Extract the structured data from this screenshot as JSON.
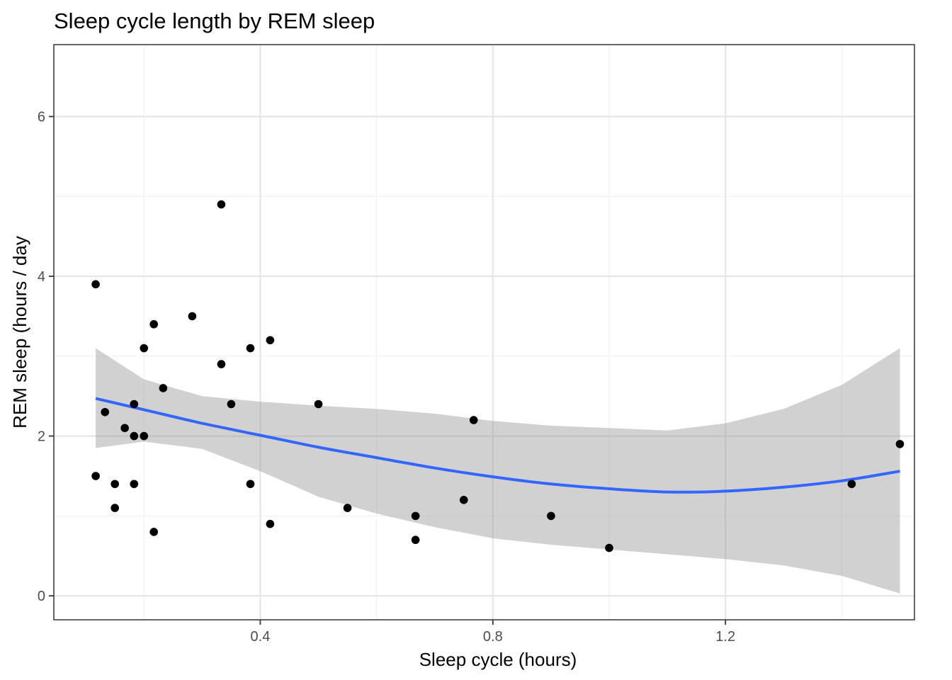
{
  "chart_data": {
    "type": "scatter",
    "title": "Sleep cycle length by REM sleep",
    "xlabel": "Sleep cycle (hours)",
    "ylabel": "REM sleep (hours / day",
    "xlim": [
      0.045,
      1.525
    ],
    "ylim": [
      -0.3,
      6.9
    ],
    "x_ticks": [
      0.4,
      0.8,
      1.2
    ],
    "x_tick_labels": [
      "0.4",
      "0.8",
      "1.2"
    ],
    "x_minor_ticks": [
      0.2,
      0.6,
      1.0,
      1.4
    ],
    "y_ticks": [
      0,
      2,
      4,
      6
    ],
    "y_tick_labels": [
      "0",
      "2",
      "4",
      "6"
    ],
    "y_minor_ticks": [
      1,
      3,
      5
    ],
    "grid": true,
    "legend": "none",
    "colors": {
      "points": "#000000",
      "trend": "#3366ff",
      "band": "#999999"
    },
    "points": [
      {
        "x": 0.117,
        "y": 3.9
      },
      {
        "x": 0.117,
        "y": 1.5
      },
      {
        "x": 0.133,
        "y": 2.3
      },
      {
        "x": 0.15,
        "y": 1.4
      },
      {
        "x": 0.15,
        "y": 1.1
      },
      {
        "x": 0.167,
        "y": 2.1
      },
      {
        "x": 0.183,
        "y": 2.4
      },
      {
        "x": 0.183,
        "y": 2.0
      },
      {
        "x": 0.183,
        "y": 1.4
      },
      {
        "x": 0.2,
        "y": 3.1
      },
      {
        "x": 0.2,
        "y": 2.0
      },
      {
        "x": 0.217,
        "y": 3.4
      },
      {
        "x": 0.217,
        "y": 0.8
      },
      {
        "x": 0.233,
        "y": 2.6
      },
      {
        "x": 0.283,
        "y": 3.5
      },
      {
        "x": 0.333,
        "y": 4.9
      },
      {
        "x": 0.333,
        "y": 2.9
      },
      {
        "x": 0.35,
        "y": 2.4
      },
      {
        "x": 0.383,
        "y": 3.1
      },
      {
        "x": 0.383,
        "y": 1.4
      },
      {
        "x": 0.417,
        "y": 3.2
      },
      {
        "x": 0.417,
        "y": 0.9
      },
      {
        "x": 0.5,
        "y": 2.4
      },
      {
        "x": 0.55,
        "y": 1.1
      },
      {
        "x": 0.667,
        "y": 1.0
      },
      {
        "x": 0.667,
        "y": 0.7
      },
      {
        "x": 0.75,
        "y": 1.2
      },
      {
        "x": 0.767,
        "y": 2.2
      },
      {
        "x": 0.9,
        "y": 1.0
      },
      {
        "x": 1.0,
        "y": 0.6
      },
      {
        "x": 1.417,
        "y": 1.4
      },
      {
        "x": 1.5,
        "y": 1.9
      }
    ],
    "smooth": {
      "x": [
        0.117,
        0.2,
        0.3,
        0.4,
        0.5,
        0.6,
        0.7,
        0.8,
        0.9,
        1.0,
        1.1,
        1.2,
        1.3,
        1.4,
        1.5
      ],
      "y": [
        2.47,
        2.33,
        2.16,
        2.01,
        1.86,
        1.73,
        1.6,
        1.49,
        1.4,
        1.34,
        1.3,
        1.31,
        1.36,
        1.44,
        1.56
      ],
      "ymin": [
        1.85,
        1.93,
        1.84,
        1.56,
        1.24,
        1.03,
        0.86,
        0.72,
        0.64,
        0.58,
        0.52,
        0.46,
        0.38,
        0.25,
        0.03
      ],
      "ymax": [
        3.1,
        2.71,
        2.5,
        2.43,
        2.38,
        2.34,
        2.28,
        2.19,
        2.13,
        2.1,
        2.07,
        2.16,
        2.34,
        2.64,
        3.1
      ]
    }
  }
}
